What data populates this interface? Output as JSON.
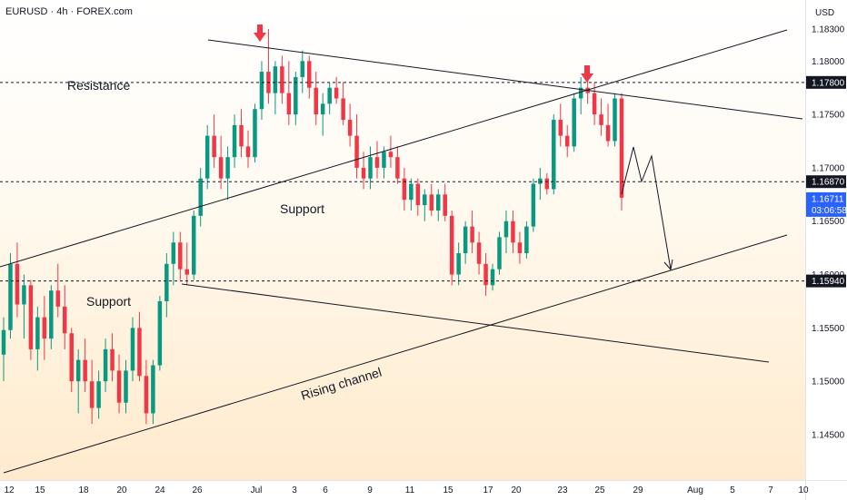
{
  "header": {
    "symbol_line": "EURUSD · 4h · FOREX.com",
    "currency": "USD"
  },
  "colors": {
    "up": "#089981",
    "down": "#f23645",
    "line": "#131722",
    "arrow": "#f23645",
    "last_price_bg": "#2962ff"
  },
  "chart_data": {
    "type": "candlestick",
    "symbol": "EURUSD",
    "interval": "4h",
    "source": "FOREX.com",
    "ylim": [
      1.14,
      1.184
    ],
    "x_ticks": [
      "12",
      "15",
      "18",
      "20",
      "24",
      "26",
      "Jul",
      "3",
      "6",
      "9",
      "11",
      "15",
      "17",
      "20",
      "23",
      "25",
      "29",
      "Aug",
      "5",
      "7",
      "10"
    ],
    "y_ticks": [
      "1.18300",
      "1.18000",
      "1.17500",
      "1.17000",
      "1.16500",
      "1.16000",
      "1.15500",
      "1.15000",
      "1.14500"
    ],
    "price_labels": [
      {
        "label": "1.17800",
        "value": 1.178,
        "style": "dotted"
      },
      {
        "label": "1.16870",
        "value": 1.1687,
        "style": "dotted"
      },
      {
        "label": "1.15940",
        "value": 1.1594,
        "style": "dotted"
      }
    ],
    "last_price": {
      "price": "1.16711",
      "countdown": "03:06:58",
      "value": 1.16711
    },
    "annotations": [
      {
        "text": "Resistance",
        "rotate": 0
      },
      {
        "text": "Support",
        "rotate": 0
      },
      {
        "text": "Support",
        "rotate": 0
      },
      {
        "text": "Rising channel",
        "rotate": -17
      }
    ],
    "candles": [
      [
        1.1525,
        1.156,
        1.15,
        1.1548
      ],
      [
        1.1548,
        1.162,
        1.154,
        1.161
      ],
      [
        1.161,
        1.163,
        1.156,
        1.1572
      ],
      [
        1.1572,
        1.16,
        1.154,
        1.159
      ],
      [
        1.159,
        1.1595,
        1.152,
        1.153
      ],
      [
        1.153,
        1.157,
        1.151,
        1.156
      ],
      [
        1.156,
        1.158,
        1.152,
        1.154
      ],
      [
        1.154,
        1.159,
        1.153,
        1.1585
      ],
      [
        1.1585,
        1.161,
        1.156,
        1.157
      ],
      [
        1.157,
        1.159,
        1.153,
        1.1545
      ],
      [
        1.1545,
        1.155,
        1.149,
        1.15
      ],
      [
        1.15,
        1.153,
        1.147,
        1.152
      ],
      [
        1.152,
        1.154,
        1.149,
        1.15
      ],
      [
        1.15,
        1.152,
        1.146,
        1.1475
      ],
      [
        1.1475,
        1.151,
        1.1465,
        1.15
      ],
      [
        1.15,
        1.154,
        1.149,
        1.153
      ],
      [
        1.153,
        1.1545,
        1.15,
        1.151
      ],
      [
        1.151,
        1.1525,
        1.147,
        1.148
      ],
      [
        1.148,
        1.152,
        1.147,
        1.151
      ],
      [
        1.151,
        1.156,
        1.15,
        1.155
      ],
      [
        1.155,
        1.1565,
        1.15,
        1.1505
      ],
      [
        1.1505,
        1.152,
        1.146,
        1.147
      ],
      [
        1.147,
        1.152,
        1.146,
        1.1515
      ],
      [
        1.1515,
        1.158,
        1.151,
        1.1575
      ],
      [
        1.1575,
        1.162,
        1.156,
        1.161
      ],
      [
        1.161,
        1.164,
        1.159,
        1.163
      ],
      [
        1.163,
        1.164,
        1.1595,
        1.1605
      ],
      [
        1.1605,
        1.163,
        1.159,
        1.16
      ],
      [
        1.16,
        1.166,
        1.1595,
        1.1655
      ],
      [
        1.1655,
        1.17,
        1.1645,
        1.169
      ],
      [
        1.169,
        1.174,
        1.168,
        1.173
      ],
      [
        1.173,
        1.175,
        1.17,
        1.171
      ],
      [
        1.171,
        1.173,
        1.168,
        1.169
      ],
      [
        1.169,
        1.172,
        1.167,
        1.171
      ],
      [
        1.171,
        1.175,
        1.17,
        1.174
      ],
      [
        1.174,
        1.1755,
        1.171,
        1.172
      ],
      [
        1.172,
        1.1735,
        1.17,
        1.171
      ],
      [
        1.171,
        1.176,
        1.1705,
        1.1755
      ],
      [
        1.1755,
        1.18,
        1.1745,
        1.179
      ],
      [
        1.179,
        1.183,
        1.176,
        1.177
      ],
      [
        1.177,
        1.18,
        1.175,
        1.1795
      ],
      [
        1.1795,
        1.1805,
        1.176,
        1.177
      ],
      [
        1.177,
        1.18,
        1.174,
        1.175
      ],
      [
        1.175,
        1.179,
        1.174,
        1.1785
      ],
      [
        1.1785,
        1.181,
        1.177,
        1.18
      ],
      [
        1.18,
        1.1805,
        1.1765,
        1.1775
      ],
      [
        1.1775,
        1.179,
        1.174,
        1.175
      ],
      [
        1.175,
        1.177,
        1.173,
        1.176
      ],
      [
        1.176,
        1.178,
        1.175,
        1.1775
      ],
      [
        1.1775,
        1.1785,
        1.176,
        1.1765
      ],
      [
        1.1765,
        1.178,
        1.174,
        1.1745
      ],
      [
        1.1745,
        1.176,
        1.172,
        1.173
      ],
      [
        1.173,
        1.175,
        1.169,
        1.17
      ],
      [
        1.17,
        1.1715,
        1.168,
        1.169
      ],
      [
        1.169,
        1.172,
        1.168,
        1.171
      ],
      [
        1.171,
        1.1725,
        1.169,
        1.17
      ],
      [
        1.17,
        1.172,
        1.169,
        1.1715
      ],
      [
        1.1715,
        1.173,
        1.17,
        1.171
      ],
      [
        1.171,
        1.172,
        1.1685,
        1.169
      ],
      [
        1.169,
        1.17,
        1.166,
        1.167
      ],
      [
        1.167,
        1.169,
        1.166,
        1.1685
      ],
      [
        1.1685,
        1.169,
        1.1655,
        1.1665
      ],
      [
        1.1665,
        1.168,
        1.165,
        1.1675
      ],
      [
        1.1675,
        1.1685,
        1.1655,
        1.166
      ],
      [
        1.166,
        1.168,
        1.165,
        1.1675
      ],
      [
        1.1675,
        1.1685,
        1.165,
        1.1655
      ],
      [
        1.1655,
        1.166,
        1.159,
        1.16
      ],
      [
        1.16,
        1.163,
        1.159,
        1.162
      ],
      [
        1.162,
        1.165,
        1.161,
        1.1645
      ],
      [
        1.1645,
        1.166,
        1.162,
        1.163
      ],
      [
        1.163,
        1.164,
        1.16,
        1.161
      ],
      [
        1.161,
        1.162,
        1.158,
        1.159
      ],
      [
        1.159,
        1.161,
        1.1585,
        1.1605
      ],
      [
        1.1605,
        1.164,
        1.16,
        1.1635
      ],
      [
        1.1635,
        1.166,
        1.162,
        1.165
      ],
      [
        1.165,
        1.166,
        1.162,
        1.163
      ],
      [
        1.163,
        1.164,
        1.161,
        1.162
      ],
      [
        1.162,
        1.165,
        1.1615,
        1.1645
      ],
      [
        1.1645,
        1.169,
        1.164,
        1.1685
      ],
      [
        1.1685,
        1.17,
        1.167,
        1.169
      ],
      [
        1.169,
        1.1695,
        1.1675,
        1.168
      ],
      [
        1.168,
        1.175,
        1.1675,
        1.1745
      ],
      [
        1.1745,
        1.176,
        1.172,
        1.173
      ],
      [
        1.173,
        1.174,
        1.171,
        1.172
      ],
      [
        1.172,
        1.177,
        1.1715,
        1.1765
      ],
      [
        1.1765,
        1.1785,
        1.175,
        1.1775
      ],
      [
        1.1775,
        1.179,
        1.176,
        1.177
      ],
      [
        1.177,
        1.178,
        1.174,
        1.175
      ],
      [
        1.175,
        1.1765,
        1.173,
        1.174
      ],
      [
        1.174,
        1.176,
        1.172,
        1.1725
      ],
      [
        1.1725,
        1.177,
        1.172,
        1.1765
      ],
      [
        1.1765,
        1.177,
        1.166,
        1.1672
      ]
    ]
  }
}
